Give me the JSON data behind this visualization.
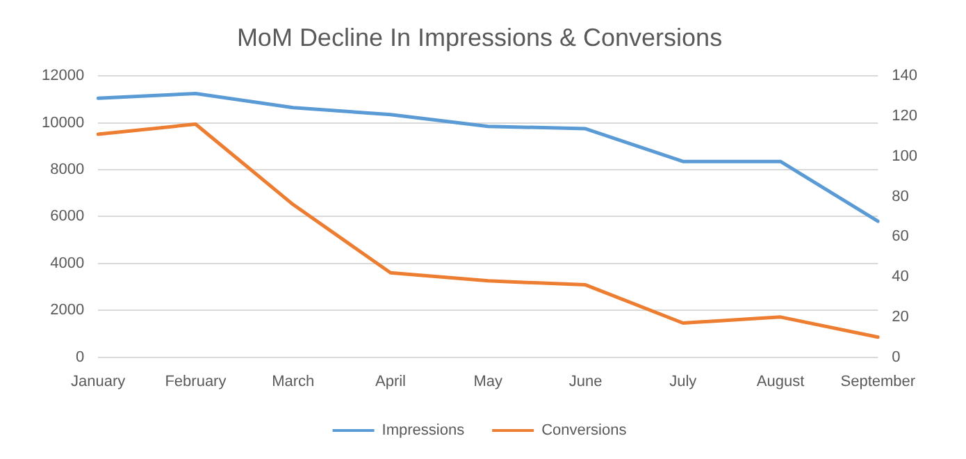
{
  "chart_data": {
    "type": "line",
    "title": "MoM Decline In Impressions & Conversions",
    "categories": [
      "January",
      "February",
      "March",
      "April",
      "May",
      "June",
      "July",
      "August",
      "September"
    ],
    "series": [
      {
        "name": "Impressions",
        "color": "#5b9bd5",
        "values": [
          11050,
          11250,
          10650,
          10350,
          9850,
          9750,
          8350,
          8350,
          5800
        ]
      },
      {
        "name": "Conversions",
        "color": "#ed7d31",
        "axis": "y2",
        "values": [
          111,
          116,
          76,
          42,
          38,
          36,
          17,
          20,
          10
        ]
      }
    ],
    "ylim": [
      0,
      12000
    ],
    "yticks": [
      0,
      2000,
      4000,
      6000,
      8000,
      10000,
      12000
    ],
    "y2lim": [
      0,
      140
    ],
    "y2ticks": [
      0,
      20,
      40,
      60,
      80,
      100,
      120,
      140
    ],
    "grid": "y",
    "legend": "bottom",
    "marker": "none",
    "line_style": "solid"
  }
}
